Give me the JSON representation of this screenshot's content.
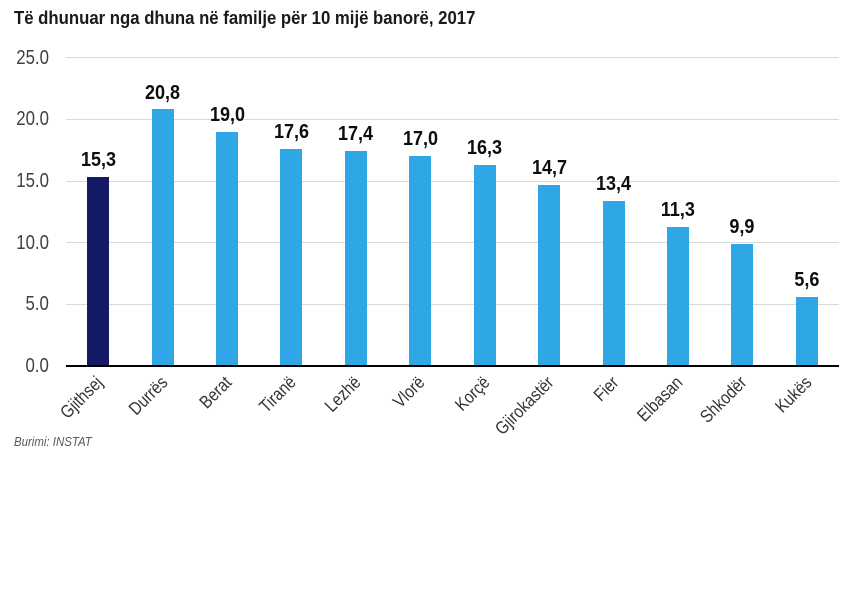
{
  "title": "Të dhunuar nga dhuna në familje për 10 mijë banorë, 2017",
  "source": "Burimi: INSTAT",
  "colors": {
    "bar": "#2fa7e6",
    "bar_highlight": "#141b64",
    "grid": "#d9d9d9",
    "axis": "#000000",
    "ytick_text": "#404040",
    "xtick_text": "#333333",
    "title_text": "#1a1a1a",
    "value_text": "#0d0d0d",
    "source_text": "#595959",
    "background": "#ffffff"
  },
  "chart_data": {
    "type": "bar",
    "title": "Të dhunuar nga dhuna në familje për 10 mijë banorë, 2017",
    "categories": [
      "Gjithsej",
      "Durrës",
      "Berat",
      "Tiranë",
      "Lezhë",
      "Vlorë",
      "Korçë",
      "Gjirokastër",
      "Fier",
      "Elbasan",
      "Shkodër",
      "Kukës"
    ],
    "values": [
      15.3,
      20.8,
      19.0,
      17.6,
      17.4,
      17.0,
      16.3,
      14.7,
      13.4,
      11.3,
      9.9,
      5.6
    ],
    "value_labels": [
      "15,3",
      "20,8",
      "19,0",
      "17,6",
      "17,4",
      "17,0",
      "16,3",
      "14,7",
      "13,4",
      "11,3",
      "9,9",
      "5,6"
    ],
    "highlight_index": 0,
    "xlabel": "",
    "ylabel": "",
    "ylim": [
      0,
      25
    ],
    "ytick_step": 5,
    "ytick_labels": [
      "0.0",
      "5.0",
      "10.0",
      "15.0",
      "20.0",
      "25.0"
    ],
    "grid": "horizontal",
    "legend": "none",
    "xtick_rotation_deg": 45,
    "source": "Burimi: INSTAT"
  }
}
